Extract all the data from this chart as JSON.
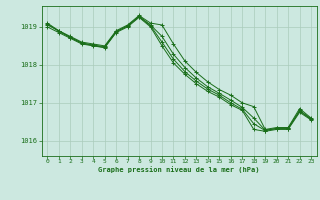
{
  "title": "Graphe pression niveau de la mer (hPa)",
  "background_color": "#cce8e0",
  "grid_color": "#aaccbb",
  "line_color": "#1a6e1a",
  "text_color": "#1a6e1a",
  "xlim": [
    -0.5,
    23.5
  ],
  "ylim": [
    1015.6,
    1019.55
  ],
  "yticks": [
    1016,
    1017,
    1018,
    1019
  ],
  "xticks": [
    0,
    1,
    2,
    3,
    4,
    5,
    6,
    7,
    8,
    9,
    10,
    11,
    12,
    13,
    14,
    15,
    16,
    17,
    18,
    19,
    20,
    21,
    22,
    23
  ],
  "series": [
    [
      1019.1,
      1018.9,
      1018.75,
      1018.6,
      1018.55,
      1018.5,
      1018.9,
      1019.05,
      1019.3,
      1019.1,
      1019.05,
      1018.55,
      1018.1,
      1017.8,
      1017.55,
      1017.35,
      1017.2,
      1017.0,
      1016.9,
      1016.3,
      1016.35,
      1016.35,
      1016.85,
      1016.6
    ],
    [
      1019.0,
      1018.85,
      1018.7,
      1018.55,
      1018.5,
      1018.45,
      1018.85,
      1019.0,
      1019.25,
      1019.0,
      1018.5,
      1018.05,
      1017.75,
      1017.5,
      1017.3,
      1017.15,
      1016.95,
      1016.8,
      1016.3,
      1016.25,
      1016.3,
      1016.3,
      1016.75,
      1016.55
    ],
    [
      1019.05,
      1018.9,
      1018.72,
      1018.58,
      1018.52,
      1018.48,
      1018.88,
      1019.02,
      1019.28,
      1019.05,
      1018.75,
      1018.28,
      1017.93,
      1017.65,
      1017.42,
      1017.25,
      1017.07,
      1016.88,
      1016.6,
      1016.28,
      1016.32,
      1016.32,
      1016.8,
      1016.58
    ],
    [
      1019.08,
      1018.88,
      1018.73,
      1018.57,
      1018.51,
      1018.46,
      1018.87,
      1019.03,
      1019.27,
      1019.03,
      1018.6,
      1018.15,
      1017.82,
      1017.57,
      1017.36,
      1017.2,
      1017.0,
      1016.83,
      1016.45,
      1016.27,
      1016.33,
      1016.33,
      1016.78,
      1016.57
    ]
  ]
}
